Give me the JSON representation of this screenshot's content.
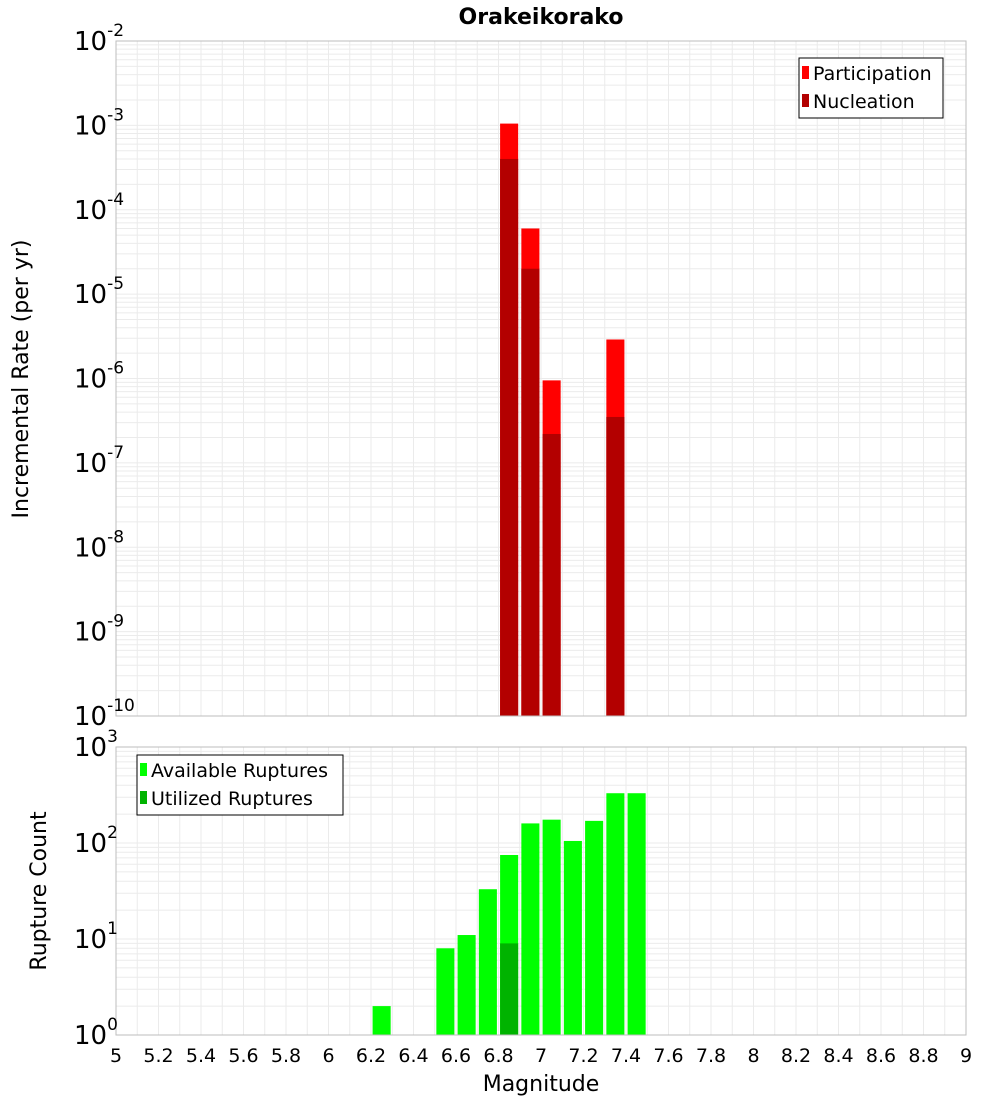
{
  "chart_data": [
    {
      "type": "bar",
      "title": "Orakeikorako",
      "xlabel": "",
      "ylabel": "Incremental Rate (per yr)",
      "yscale": "log",
      "ylim_exp": [
        -10,
        -2
      ],
      "xlim": [
        5,
        9
      ],
      "grid": true,
      "legend_position": "top-right",
      "series": [
        {
          "name": "Participation",
          "color": "#ff0000",
          "points": [
            {
              "x": 6.85,
              "y": 0.00105
            },
            {
              "x": 6.95,
              "y": 6e-05
            },
            {
              "x": 7.05,
              "y": 9.5e-07
            },
            {
              "x": 7.35,
              "y": 2.9e-06
            }
          ]
        },
        {
          "name": "Nucleation",
          "color": "#b30000",
          "points": [
            {
              "x": 6.85,
              "y": 0.0004
            },
            {
              "x": 6.95,
              "y": 2e-05
            },
            {
              "x": 7.05,
              "y": 2.2e-07
            },
            {
              "x": 7.35,
              "y": 3.5e-07
            }
          ]
        }
      ]
    },
    {
      "type": "bar",
      "xlabel": "Magnitude",
      "ylabel": "Rupture Count",
      "yscale": "log",
      "ylim_exp": [
        0,
        3
      ],
      "xlim": [
        5,
        9
      ],
      "grid": true,
      "legend_position": "top-left",
      "series": [
        {
          "name": "Available Ruptures",
          "color": "#00ff00",
          "points": [
            {
              "x": 6.25,
              "y": 2
            },
            {
              "x": 6.45,
              "y": 1
            },
            {
              "x": 6.55,
              "y": 8
            },
            {
              "x": 6.65,
              "y": 11
            },
            {
              "x": 6.75,
              "y": 33
            },
            {
              "x": 6.85,
              "y": 75
            },
            {
              "x": 6.95,
              "y": 160
            },
            {
              "x": 7.05,
              "y": 175
            },
            {
              "x": 7.15,
              "y": 105
            },
            {
              "x": 7.25,
              "y": 170
            },
            {
              "x": 7.35,
              "y": 330
            },
            {
              "x": 7.45,
              "y": 330
            }
          ]
        },
        {
          "name": "Utilized Ruptures",
          "color": "#00b300",
          "points": [
            {
              "x": 6.85,
              "y": 9
            },
            {
              "x": 6.95,
              "y": 1
            },
            {
              "x": 7.05,
              "y": 1
            },
            {
              "x": 7.35,
              "y": 1
            }
          ]
        }
      ]
    }
  ],
  "x_ticks": [
    "5",
    "5.2",
    "5.4",
    "5.6",
    "5.8",
    "6",
    "6.2",
    "6.4",
    "6.6",
    "6.8",
    "7",
    "7.2",
    "7.4",
    "7.6",
    "7.8",
    "8",
    "8.2",
    "8.4",
    "8.6",
    "8.8",
    "9"
  ],
  "y_tick_base": "10"
}
